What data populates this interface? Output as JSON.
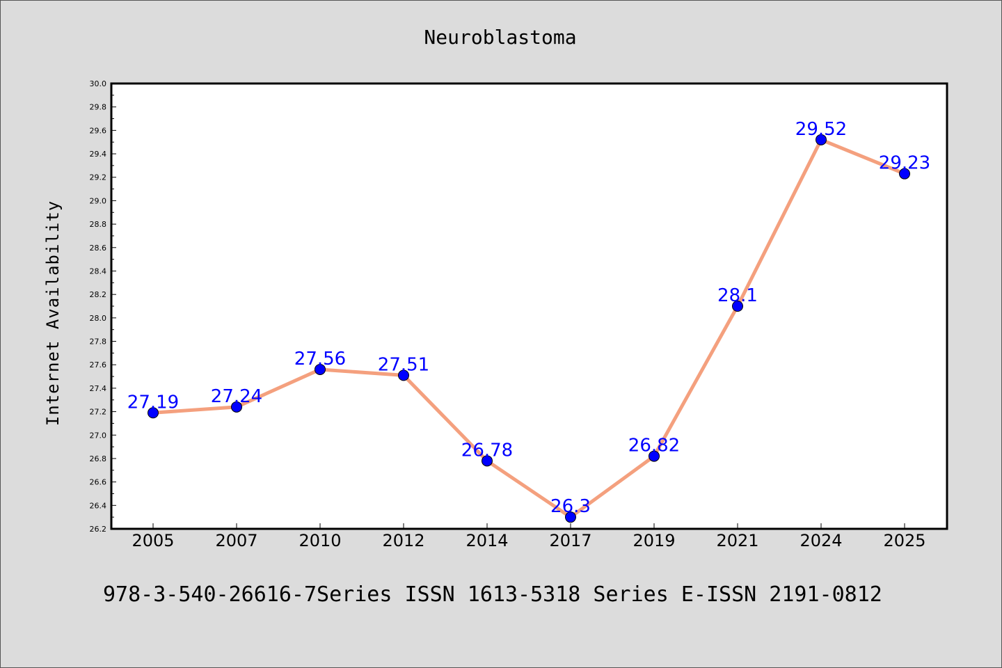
{
  "chart_data": {
    "type": "line",
    "title": "Neuroblastoma",
    "xlabel": "",
    "ylabel": "Internet Availability",
    "categories": [
      "2005",
      "2007",
      "2010",
      "2012",
      "2014",
      "2017",
      "2019",
      "2021",
      "2024",
      "2025"
    ],
    "series": [
      {
        "values": [
          27.19,
          27.24,
          27.56,
          27.51,
          26.78,
          26.3,
          26.82,
          28.1,
          29.52,
          29.23
        ],
        "data_labels": [
          "27.19",
          "27.24",
          "27.56",
          "27.51",
          "26.78",
          "26.3",
          "26.82",
          "28.1",
          "29.52",
          "29.23"
        ],
        "line_color": "#f4a07e",
        "marker_color": "#0000ff"
      }
    ],
    "ylim": [
      26.2,
      30.0
    ],
    "yticks": [
      "26.2",
      "26.4",
      "26.6",
      "26.8",
      "27.0",
      "27.2",
      "27.4",
      "27.6",
      "27.8",
      "28.0",
      "28.2",
      "28.4",
      "28.6",
      "28.8",
      "29.0",
      "29.2",
      "29.4",
      "29.6",
      "29.8",
      "30.0"
    ],
    "grid": false,
    "legend": "none"
  },
  "footer": {
    "text": "978-3-540-26616-7Series ISSN 1613-5318 Series E-ISSN 2191-0812"
  },
  "colors": {
    "background": "#dcdcdc",
    "plot_background": "#ffffff",
    "line": "#f4a07e",
    "marker": "#0000ff",
    "data_label": "#0000ff"
  }
}
